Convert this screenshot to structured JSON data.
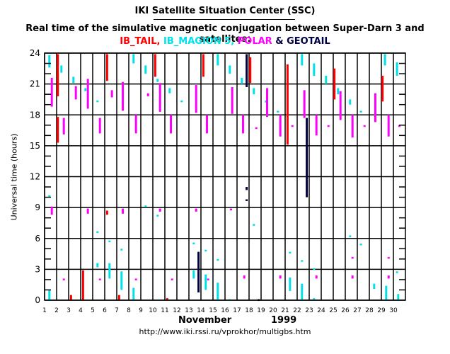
{
  "header": {
    "title": "IKI Satellite Situation Center (SSC)",
    "subtitle": "Real time of the simulative magnetic conjugation between Super-Darn 3 and satellites:",
    "satellites_line": [
      {
        "text": "IB_TAIL,",
        "color": "#ff0000"
      },
      {
        "text": " IB_MAGION 5,",
        "color": "#00e0e8"
      },
      {
        "text": " POLAR",
        "color": "#ff00ff"
      },
      {
        "text": " & GEOTAIL",
        "color": "#000040"
      }
    ]
  },
  "footer": {
    "month": "November",
    "year": "1999",
    "url": "http://www.iki.rssi.ru/vprokhor/multigbs.htm"
  },
  "chart_data": {
    "type": "scatter",
    "title": "Real time of the simulative magnetic conjugation between Super-Darn 3 and satellites",
    "xlabel": "November 1999",
    "ylabel": "Universal time (hours)",
    "xlim": [
      1,
      31
    ],
    "ylim": [
      0,
      24
    ],
    "x_ticks": [
      "1",
      "2",
      "3",
      "4",
      "5",
      "6",
      "7",
      "8",
      "9",
      "10",
      "11",
      "12",
      "13",
      "14",
      "15",
      "16",
      "17",
      "18",
      "19",
      "20",
      "21",
      "22",
      "23",
      "24",
      "25",
      "26",
      "27",
      "28",
      "29",
      "30"
    ],
    "y_ticks": [
      0,
      3,
      6,
      9,
      12,
      15,
      18,
      21,
      24
    ],
    "y_tick_labels": [
      "0",
      "3",
      "6",
      "9",
      "12",
      "15",
      "18",
      "21",
      "24"
    ],
    "grid": true,
    "legend": "top (colored title line)",
    "series": [
      {
        "name": "IB_TAIL",
        "color": "#ff0000",
        "segments": [
          [
            2.1,
            19.8,
            23.9
          ],
          [
            2.1,
            15.3,
            17.8
          ],
          [
            3.2,
            0.0,
            0.5
          ],
          [
            4.2,
            0.0,
            2.9
          ],
          [
            6.2,
            21.3,
            23.9
          ],
          [
            6.2,
            8.3,
            8.7
          ],
          [
            7.2,
            0.0,
            0.5
          ],
          [
            10.2,
            21.7,
            23.9
          ],
          [
            11.2,
            0.0,
            0.2
          ],
          [
            14.2,
            21.7,
            23.9
          ],
          [
            18.1,
            21.1,
            23.6
          ],
          [
            21.2,
            15.1,
            22.9
          ],
          [
            25.1,
            19.5,
            22.5
          ],
          [
            29.1,
            19.3,
            21.8
          ]
        ]
      },
      {
        "name": "IB_MAGION 5",
        "color": "#00e0e8",
        "segments": [
          [
            1.4,
            22.6,
            23.8
          ],
          [
            1.4,
            10.2,
            10.2
          ],
          [
            1.4,
            0.0,
            1.0
          ],
          [
            2.4,
            22.1,
            22.8
          ],
          [
            3.4,
            21.1,
            21.7
          ],
          [
            4.4,
            20.3,
            20.6
          ],
          [
            5.4,
            19.4,
            19.4
          ],
          [
            5.4,
            6.7,
            6.7
          ],
          [
            5.4,
            3.2,
            3.6
          ],
          [
            6.4,
            5.8,
            5.8
          ],
          [
            6.4,
            2.1,
            3.6
          ],
          [
            7.4,
            5.0,
            5.0
          ],
          [
            7.4,
            1.0,
            2.8
          ],
          [
            8.4,
            23.0,
            23.9
          ],
          [
            8.4,
            0.0,
            1.2
          ],
          [
            9.4,
            22.0,
            22.8
          ],
          [
            9.4,
            9.2,
            9.2
          ],
          [
            10.4,
            21.2,
            21.5
          ],
          [
            10.4,
            8.3,
            8.3
          ],
          [
            11.4,
            20.1,
            20.6
          ],
          [
            12.4,
            19.4,
            19.4
          ],
          [
            13.4,
            5.6,
            5.6
          ],
          [
            13.4,
            2.1,
            2.9
          ],
          [
            14.4,
            4.9,
            4.9
          ],
          [
            14.4,
            1.0,
            2.5
          ],
          [
            15.4,
            22.8,
            23.9
          ],
          [
            15.4,
            4.0,
            4.0
          ],
          [
            15.4,
            0.0,
            1.7
          ],
          [
            16.4,
            22.0,
            22.8
          ],
          [
            16.4,
            0.1,
            0.1
          ],
          [
            17.4,
            21.0,
            21.6
          ],
          [
            18.4,
            20.0,
            20.6
          ],
          [
            18.4,
            7.4,
            7.4
          ],
          [
            19.4,
            19.2,
            19.4
          ],
          [
            20.4,
            18.4,
            18.4
          ],
          [
            21.4,
            4.7,
            4.7
          ],
          [
            21.4,
            0.9,
            2.2
          ],
          [
            22.4,
            22.8,
            23.9
          ],
          [
            22.4,
            3.9,
            3.9
          ],
          [
            22.4,
            0.0,
            1.6
          ],
          [
            23.4,
            21.8,
            23.0
          ],
          [
            23.4,
            3.1,
            3.1
          ],
          [
            23.4,
            0.0,
            0.2
          ],
          [
            24.4,
            21.0,
            21.8
          ],
          [
            25.4,
            20.0,
            20.6
          ],
          [
            26.4,
            19.0,
            19.5
          ],
          [
            26.4,
            6.3,
            6.3
          ],
          [
            27.3,
            18.4,
            18.4
          ],
          [
            27.3,
            5.5,
            5.5
          ],
          [
            28.4,
            1.1,
            1.6
          ],
          [
            29.3,
            22.8,
            23.9
          ],
          [
            29.4,
            0.0,
            1.4
          ],
          [
            30.3,
            21.8,
            23.1
          ],
          [
            30.3,
            2.8,
            2.8
          ],
          [
            30.4,
            0.0,
            0.6
          ]
        ]
      },
      {
        "name": "POLAR",
        "color": "#ff00ff",
        "segments": [
          [
            1.6,
            18.8,
            21.6
          ],
          [
            1.6,
            8.3,
            9.1
          ],
          [
            2.6,
            16.1,
            17.7
          ],
          [
            2.6,
            2.1,
            2.1
          ],
          [
            3.6,
            19.5,
            20.8
          ],
          [
            4.6,
            18.6,
            21.5
          ],
          [
            4.6,
            8.4,
            8.9
          ],
          [
            5.6,
            16.2,
            17.7
          ],
          [
            5.6,
            2.1,
            2.1
          ],
          [
            6.6,
            19.7,
            20.4
          ],
          [
            7.5,
            18.4,
            21.2
          ],
          [
            7.5,
            8.4,
            8.9
          ],
          [
            8.6,
            16.2,
            18.0
          ],
          [
            8.6,
            2.1,
            2.1
          ],
          [
            9.6,
            19.8,
            20.1
          ],
          [
            10.6,
            18.3,
            21.1
          ],
          [
            10.6,
            8.6,
            8.9
          ],
          [
            11.5,
            16.2,
            18.0
          ],
          [
            11.6,
            2.1,
            2.1
          ],
          [
            13.6,
            18.2,
            20.9
          ],
          [
            13.6,
            8.6,
            8.9
          ],
          [
            14.5,
            16.2,
            18.0
          ],
          [
            14.6,
            2.1,
            2.1
          ],
          [
            16.5,
            8.8,
            8.9
          ],
          [
            16.6,
            18.1,
            20.7
          ],
          [
            17.5,
            16.2,
            18.0
          ],
          [
            17.6,
            2.1,
            2.4
          ],
          [
            18.6,
            16.8,
            16.8
          ],
          [
            19.5,
            17.8,
            20.6
          ],
          [
            20.6,
            15.9,
            18.0
          ],
          [
            20.6,
            2.1,
            2.4
          ],
          [
            21.6,
            17.0,
            17.0
          ],
          [
            22.6,
            17.7,
            20.4
          ],
          [
            23.6,
            16.0,
            18.0
          ],
          [
            23.6,
            2.1,
            2.4
          ],
          [
            24.6,
            17.0,
            17.0
          ],
          [
            25.6,
            17.5,
            20.3
          ],
          [
            26.6,
            15.8,
            18.0
          ],
          [
            26.6,
            4.2,
            4.2
          ],
          [
            26.6,
            2.1,
            2.4
          ],
          [
            27.6,
            17.0,
            17.0
          ],
          [
            28.5,
            17.3,
            20.1
          ],
          [
            29.6,
            15.9,
            18.0
          ],
          [
            29.6,
            4.2,
            4.2
          ],
          [
            29.6,
            2.1,
            2.4
          ],
          [
            30.5,
            17.0,
            17.0
          ]
        ]
      },
      {
        "name": "GEOTAIL",
        "color": "#000040",
        "segments": [
          [
            13.8,
            0.75,
            4.7
          ],
          [
            17.8,
            20.7,
            23.9
          ],
          [
            17.8,
            10.7,
            11.0
          ],
          [
            17.8,
            9.8,
            9.8
          ],
          [
            18.8,
            0.1,
            0.1
          ],
          [
            22.8,
            10.0,
            17.7
          ]
        ]
      }
    ]
  }
}
